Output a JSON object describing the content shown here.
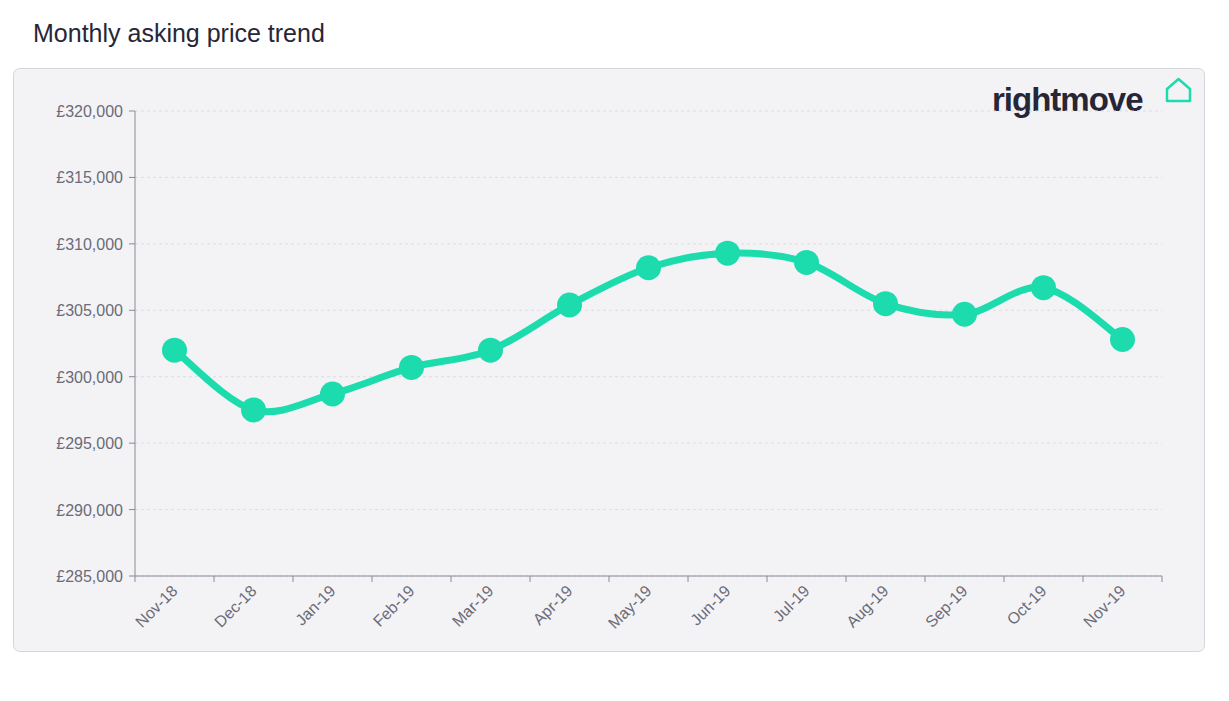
{
  "chart_data": {
    "type": "line",
    "title": "Monthly asking price trend",
    "brand": "rightmove",
    "categories": [
      "Nov-18",
      "Dec-18",
      "Jan-19",
      "Feb-19",
      "Mar-19",
      "Apr-19",
      "May-19",
      "Jun-19",
      "Jul-19",
      "Aug-19",
      "Sep-19",
      "Oct-19",
      "Nov-19"
    ],
    "values": [
      302000,
      297500,
      298700,
      300700,
      302000,
      305400,
      308200,
      309300,
      308600,
      305500,
      304700,
      306700,
      302800
    ],
    "color": "#1cdcae",
    "marker": "circle",
    "line_style": "solid",
    "ylim": [
      285000,
      320000
    ],
    "yticks": [
      {
        "value": 285000,
        "label": "£285,000"
      },
      {
        "value": 290000,
        "label": "£290,000"
      },
      {
        "value": 295000,
        "label": "£295,000"
      },
      {
        "value": 300000,
        "label": "£300,000"
      },
      {
        "value": 305000,
        "label": "£305,000"
      },
      {
        "value": 310000,
        "label": "£310,000"
      },
      {
        "value": 315000,
        "label": "£315,000"
      },
      {
        "value": 320000,
        "label": "£320,000"
      }
    ],
    "grid": true
  }
}
